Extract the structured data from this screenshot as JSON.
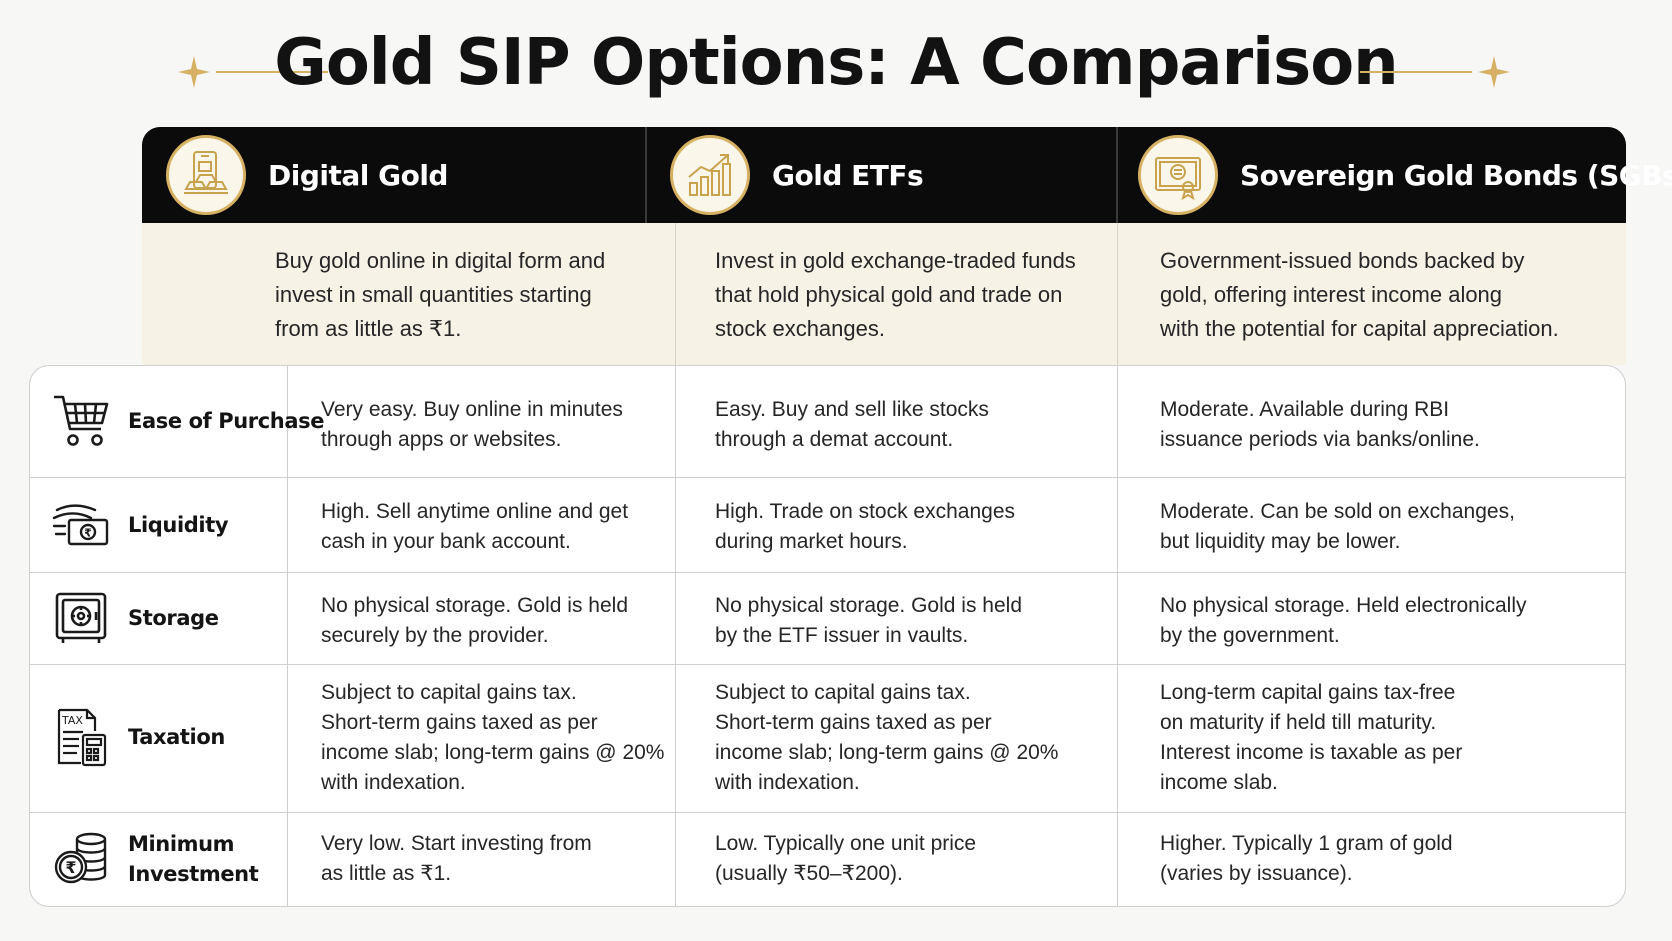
{
  "title": "Gold SIP Options: A Comparison",
  "colors": {
    "gold": "#d6b163",
    "header_bg": "#0b0b0b",
    "desc_bg": "#f7f2e6"
  },
  "columns": [
    {
      "name": "Digital Gold",
      "icon": "gold-bars-phone-icon",
      "description": [
        "Buy gold online in digital form and",
        "invest in small quantities starting",
        "from as little as ₹1."
      ]
    },
    {
      "name": "Gold ETFs",
      "icon": "growth-chart-icon",
      "description": [
        "Invest in gold exchange-traded funds",
        "that hold physical gold and trade on",
        "stock exchanges."
      ]
    },
    {
      "name": "Sovereign Gold Bonds (SGBs)",
      "icon": "certificate-icon",
      "description": [
        "Government-issued bonds backed by",
        "gold, offering interest income along",
        "with the potential for capital appreciation."
      ]
    }
  ],
  "rows": [
    {
      "label": [
        "Ease of Purchase"
      ],
      "icon": "shopping-cart-icon",
      "cells": [
        [
          "Very easy. Buy online in minutes",
          "through apps or websites."
        ],
        [
          "Easy. Buy and sell like stocks",
          "through a demat account."
        ],
        [
          "Moderate. Available during RBI",
          "issuance periods via banks/online."
        ]
      ]
    },
    {
      "label": [
        "Liquidity"
      ],
      "icon": "cash-flow-icon",
      "cells": [
        [
          "High. Sell anytime online and get",
          "cash in your bank account."
        ],
        [
          "High. Trade on stock exchanges",
          "during market hours."
        ],
        [
          "Moderate. Can be sold on exchanges,",
          "but liquidity may be lower."
        ]
      ]
    },
    {
      "label": [
        "Storage"
      ],
      "icon": "safe-vault-icon",
      "cells": [
        [
          "No physical storage. Gold is held",
          "securely by the provider."
        ],
        [
          "No physical storage. Gold is held",
          "by the ETF issuer in vaults."
        ],
        [
          "No physical storage. Held electronically",
          "by the government."
        ]
      ]
    },
    {
      "label": [
        "Taxation"
      ],
      "icon": "tax-document-icon",
      "cells": [
        [
          "Subject to capital gains tax.",
          "Short-term gains taxed as per",
          "income slab; long-term gains @ 20%",
          "with indexation."
        ],
        [
          "Subject to capital gains tax.",
          "Short-term gains taxed as per",
          "income slab; long-term gains @ 20%",
          "with indexation."
        ],
        [
          "Long-term capital gains tax-free",
          "on maturity if held till maturity.",
          "Interest income is taxable as per",
          "income slab."
        ]
      ]
    },
    {
      "label": [
        "Minimum",
        "Investment"
      ],
      "icon": "coin-stack-icon",
      "cells": [
        [
          "Very low. Start investing from",
          "as little as ₹1."
        ],
        [
          "Low. Typically one unit price",
          "(usually ₹50–₹200)."
        ],
        [
          "Higher. Typically 1 gram of gold",
          "(varies by issuance)."
        ]
      ]
    }
  ]
}
